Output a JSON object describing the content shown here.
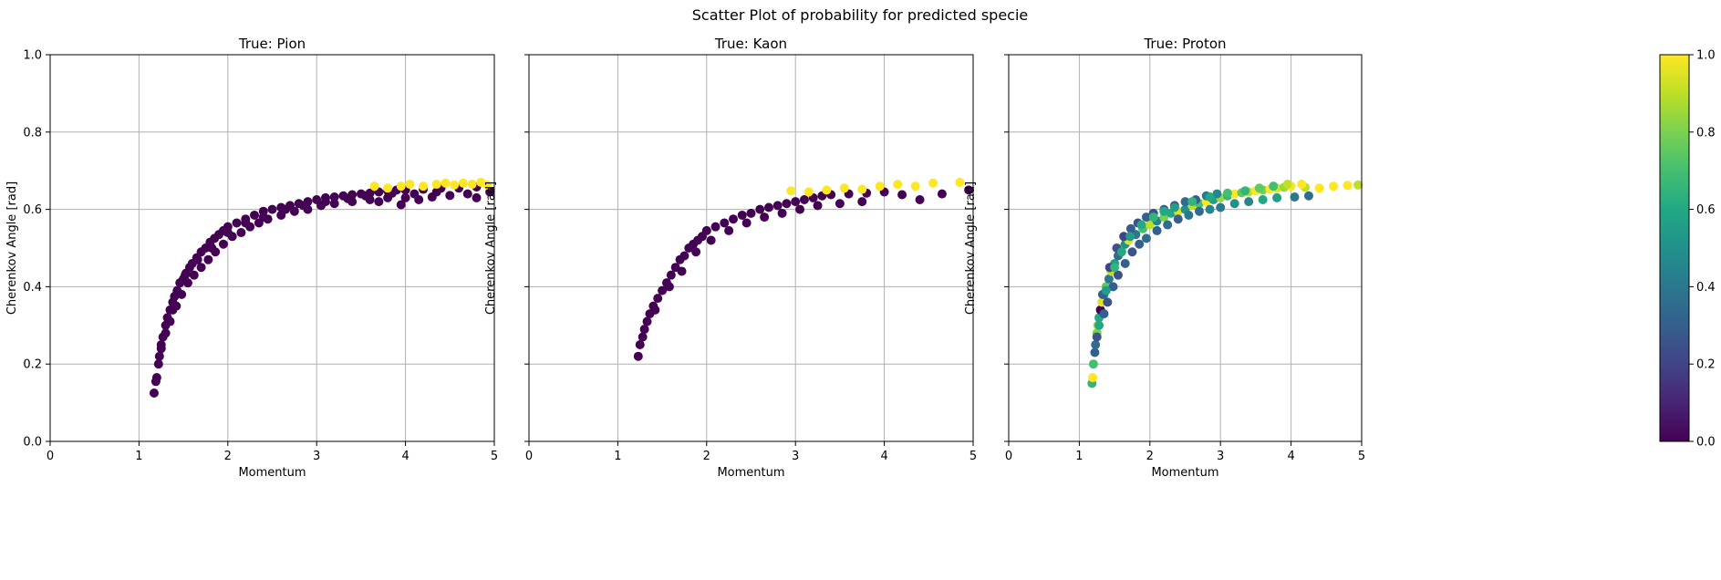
{
  "figure": {
    "suptitle": "Scatter Plot of probability for predicted specie"
  },
  "colorbar": {
    "ticks": [
      "0.0",
      "0.2",
      "0.4",
      "0.6",
      "0.8",
      "1.0"
    ],
    "colormap": "viridis",
    "range": [
      0,
      1
    ]
  },
  "chart_data": [
    {
      "type": "scatter",
      "title": "True: Pion",
      "xlabel": "Momentum",
      "ylabel": "Cherenkov Angle [rad]",
      "xlim": [
        0,
        5
      ],
      "ylim": [
        0,
        1.0
      ],
      "xticks": [
        "0",
        "1",
        "2",
        "3",
        "4",
        "5"
      ],
      "yticks": [
        "0.0",
        "0.2",
        "0.4",
        "0.6",
        "0.8",
        "1.0"
      ],
      "grid": true,
      "color_value_note": "predicted probability (0 = dark purple, 1 = yellow)",
      "points": [
        [
          1.17,
          0.125,
          0
        ],
        [
          1.19,
          0.155,
          0
        ],
        [
          1.2,
          0.165,
          0
        ],
        [
          1.22,
          0.2,
          0
        ],
        [
          1.23,
          0.22,
          0
        ],
        [
          1.25,
          0.25,
          0
        ],
        [
          1.27,
          0.27,
          0
        ],
        [
          1.3,
          0.3,
          0
        ],
        [
          1.32,
          0.32,
          0
        ],
        [
          1.35,
          0.34,
          0
        ],
        [
          1.38,
          0.36,
          0
        ],
        [
          1.4,
          0.375,
          0
        ],
        [
          1.43,
          0.39,
          0
        ],
        [
          1.46,
          0.41,
          0
        ],
        [
          1.5,
          0.42,
          0
        ],
        [
          1.53,
          0.435,
          0
        ],
        [
          1.57,
          0.45,
          0
        ],
        [
          1.6,
          0.46,
          0
        ],
        [
          1.65,
          0.475,
          0
        ],
        [
          1.7,
          0.49,
          0
        ],
        [
          1.75,
          0.5,
          0
        ],
        [
          1.8,
          0.515,
          0
        ],
        [
          1.85,
          0.525,
          0
        ],
        [
          1.9,
          0.535,
          0
        ],
        [
          1.95,
          0.545,
          0
        ],
        [
          2.0,
          0.555,
          0
        ],
        [
          2.1,
          0.565,
          0
        ],
        [
          2.2,
          0.575,
          0
        ],
        [
          2.3,
          0.585,
          0
        ],
        [
          2.4,
          0.595,
          0
        ],
        [
          2.5,
          0.6,
          0
        ],
        [
          2.6,
          0.605,
          0
        ],
        [
          2.7,
          0.61,
          0
        ],
        [
          2.8,
          0.615,
          0
        ],
        [
          2.9,
          0.62,
          0
        ],
        [
          3.0,
          0.625,
          0
        ],
        [
          3.1,
          0.63,
          0
        ],
        [
          3.2,
          0.632,
          0
        ],
        [
          3.3,
          0.635,
          0
        ],
        [
          3.4,
          0.638,
          0
        ],
        [
          3.5,
          0.64,
          0
        ],
        [
          3.6,
          0.642,
          0
        ],
        [
          3.7,
          0.645,
          0
        ],
        [
          3.8,
          0.648,
          0
        ],
        [
          3.9,
          0.65,
          0
        ],
        [
          4.0,
          0.65,
          0
        ],
        [
          4.2,
          0.652,
          0
        ],
        [
          4.4,
          0.655,
          0
        ],
        [
          4.6,
          0.655,
          0
        ],
        [
          4.8,
          0.658,
          0
        ],
        [
          4.95,
          0.645,
          0
        ],
        [
          1.3,
          0.28,
          0
        ],
        [
          1.35,
          0.31,
          0
        ],
        [
          1.42,
          0.35,
          0
        ],
        [
          1.48,
          0.38,
          0
        ],
        [
          1.55,
          0.41,
          0
        ],
        [
          1.62,
          0.43,
          0
        ],
        [
          1.7,
          0.45,
          0
        ],
        [
          1.78,
          0.47,
          0
        ],
        [
          1.86,
          0.49,
          0
        ],
        [
          1.95,
          0.51,
          0
        ],
        [
          2.05,
          0.53,
          0
        ],
        [
          2.15,
          0.54,
          0
        ],
        [
          2.25,
          0.555,
          0
        ],
        [
          2.35,
          0.565,
          0
        ],
        [
          2.45,
          0.575,
          0
        ],
        [
          2.6,
          0.585,
          0
        ],
        [
          2.75,
          0.595,
          0
        ],
        [
          2.9,
          0.6,
          0
        ],
        [
          3.05,
          0.61,
          0
        ],
        [
          3.2,
          0.615,
          0
        ],
        [
          3.4,
          0.62,
          0
        ],
        [
          3.6,
          0.625,
          0
        ],
        [
          3.8,
          0.63,
          0
        ],
        [
          4.0,
          0.63,
          0
        ],
        [
          4.3,
          0.632,
          0
        ],
        [
          4.5,
          0.636,
          0
        ],
        [
          4.8,
          0.63,
          0
        ],
        [
          1.25,
          0.24,
          0
        ],
        [
          1.38,
          0.34,
          0
        ],
        [
          1.52,
          0.43,
          0
        ],
        [
          1.66,
          0.47,
          0
        ],
        [
          1.82,
          0.5,
          0
        ],
        [
          2.0,
          0.54,
          0
        ],
        [
          2.2,
          0.565,
          0
        ],
        [
          2.4,
          0.58,
          0
        ],
        [
          2.65,
          0.6,
          0
        ],
        [
          2.85,
          0.61,
          0
        ],
        [
          3.1,
          0.62,
          0
        ],
        [
          3.35,
          0.628,
          0
        ],
        [
          3.55,
          0.635,
          0
        ],
        [
          3.85,
          0.642,
          0
        ],
        [
          4.1,
          0.64,
          0
        ],
        [
          4.35,
          0.645,
          0
        ],
        [
          4.7,
          0.64,
          0
        ],
        [
          3.95,
          0.612,
          0
        ],
        [
          4.15,
          0.625,
          0
        ],
        [
          3.7,
          0.62,
          0
        ],
        [
          3.65,
          0.66,
          1
        ],
        [
          3.8,
          0.655,
          1
        ],
        [
          3.95,
          0.66,
          1
        ],
        [
          4.05,
          0.665,
          1
        ],
        [
          4.2,
          0.66,
          1
        ],
        [
          4.35,
          0.665,
          1
        ],
        [
          4.45,
          0.668,
          1
        ],
        [
          4.55,
          0.663,
          1
        ],
        [
          4.65,
          0.668,
          1
        ],
        [
          4.75,
          0.665,
          1
        ],
        [
          4.85,
          0.67,
          1
        ],
        [
          4.92,
          0.663,
          1
        ]
      ]
    },
    {
      "type": "scatter",
      "title": "True: Kaon",
      "xlabel": "Momentum",
      "ylabel": "Cherenkov Angle [rad]",
      "xlim": [
        0,
        5
      ],
      "ylim": [
        0,
        1.0
      ],
      "xticks": [
        "0",
        "1",
        "2",
        "3",
        "4",
        "5"
      ],
      "yticks": [
        "",
        "",
        "",
        "",
        "",
        ""
      ],
      "grid": true,
      "points": [
        [
          1.23,
          0.22,
          0
        ],
        [
          1.25,
          0.25,
          0
        ],
        [
          1.28,
          0.27,
          0
        ],
        [
          1.3,
          0.29,
          0
        ],
        [
          1.33,
          0.31,
          0
        ],
        [
          1.36,
          0.33,
          0
        ],
        [
          1.4,
          0.35,
          0
        ],
        [
          1.45,
          0.37,
          0
        ],
        [
          1.5,
          0.39,
          0
        ],
        [
          1.55,
          0.41,
          0
        ],
        [
          1.6,
          0.43,
          0
        ],
        [
          1.65,
          0.45,
          0
        ],
        [
          1.7,
          0.47,
          0
        ],
        [
          1.75,
          0.48,
          0
        ],
        [
          1.8,
          0.5,
          0
        ],
        [
          1.85,
          0.51,
          0
        ],
        [
          1.9,
          0.52,
          0
        ],
        [
          1.95,
          0.53,
          0
        ],
        [
          2.0,
          0.545,
          0
        ],
        [
          2.1,
          0.555,
          0
        ],
        [
          2.2,
          0.565,
          0
        ],
        [
          2.3,
          0.575,
          0
        ],
        [
          2.4,
          0.585,
          0
        ],
        [
          2.5,
          0.59,
          0
        ],
        [
          2.6,
          0.6,
          0
        ],
        [
          2.7,
          0.605,
          0
        ],
        [
          2.8,
          0.61,
          0
        ],
        [
          2.9,
          0.615,
          0
        ],
        [
          3.0,
          0.62,
          0
        ],
        [
          3.1,
          0.625,
          0
        ],
        [
          3.2,
          0.63,
          0
        ],
        [
          3.3,
          0.635,
          0
        ],
        [
          3.4,
          0.638,
          0
        ],
        [
          3.6,
          0.64,
          0
        ],
        [
          3.8,
          0.642,
          0
        ],
        [
          4.0,
          0.645,
          0
        ],
        [
          4.2,
          0.638,
          0
        ],
        [
          4.4,
          0.625,
          0
        ],
        [
          4.65,
          0.64,
          0
        ],
        [
          4.95,
          0.65,
          0
        ],
        [
          1.42,
          0.34,
          0
        ],
        [
          1.58,
          0.4,
          0
        ],
        [
          1.72,
          0.44,
          0
        ],
        [
          1.88,
          0.49,
          0
        ],
        [
          2.05,
          0.52,
          0
        ],
        [
          2.25,
          0.545,
          0
        ],
        [
          2.45,
          0.565,
          0
        ],
        [
          2.65,
          0.58,
          0
        ],
        [
          2.85,
          0.59,
          0
        ],
        [
          3.05,
          0.6,
          0
        ],
        [
          3.25,
          0.61,
          0
        ],
        [
          3.5,
          0.615,
          0
        ],
        [
          3.75,
          0.62,
          0
        ],
        [
          2.95,
          0.648,
          1
        ],
        [
          3.15,
          0.645,
          1
        ],
        [
          3.35,
          0.65,
          1
        ],
        [
          3.55,
          0.655,
          1
        ],
        [
          3.75,
          0.652,
          1
        ],
        [
          3.95,
          0.66,
          1
        ],
        [
          4.15,
          0.665,
          1
        ],
        [
          4.35,
          0.66,
          1
        ],
        [
          4.55,
          0.668,
          1
        ],
        [
          4.85,
          0.67,
          1
        ]
      ]
    },
    {
      "type": "scatter",
      "title": "True: Proton",
      "xlabel": "Momentum",
      "ylabel": "Cherenkov Angle [rad]",
      "xlim": [
        0,
        5
      ],
      "ylim": [
        0,
        1.0
      ],
      "xticks": [
        "0",
        "1",
        "2",
        "3",
        "4",
        "5"
      ],
      "yticks": [
        "",
        "",
        "",
        "",
        "",
        ""
      ],
      "grid": true,
      "points": [
        [
          1.18,
          0.15,
          0.65
        ],
        [
          1.19,
          0.165,
          1
        ],
        [
          1.2,
          0.2,
          0.7
        ],
        [
          1.22,
          0.23,
          0.3
        ],
        [
          1.23,
          0.25,
          0.35
        ],
        [
          1.25,
          0.28,
          0.8
        ],
        [
          1.26,
          0.3,
          0.9
        ],
        [
          1.28,
          0.32,
          0.6
        ],
        [
          1.3,
          0.34,
          0.0
        ],
        [
          1.32,
          0.36,
          0.95
        ],
        [
          1.35,
          0.38,
          0.45
        ],
        [
          1.38,
          0.4,
          0.75
        ],
        [
          1.42,
          0.42,
          0.4
        ],
        [
          1.45,
          0.44,
          0.9
        ],
        [
          1.5,
          0.46,
          0.55
        ],
        [
          1.55,
          0.48,
          0.35
        ],
        [
          1.6,
          0.5,
          0.85
        ],
        [
          1.65,
          0.51,
          0.5
        ],
        [
          1.7,
          0.52,
          0.95
        ],
        [
          1.8,
          0.535,
          0.4
        ],
        [
          1.9,
          0.55,
          0.7
        ],
        [
          2.0,
          0.56,
          0.9
        ],
        [
          2.1,
          0.57,
          0.45
        ],
        [
          2.2,
          0.58,
          0.8
        ],
        [
          2.3,
          0.59,
          0.6
        ],
        [
          2.4,
          0.595,
          0.95
        ],
        [
          2.5,
          0.6,
          0.5
        ],
        [
          2.6,
          0.61,
          0.9
        ],
        [
          2.7,
          0.615,
          0.7
        ],
        [
          2.8,
          0.62,
          1
        ],
        [
          2.9,
          0.625,
          0.55
        ],
        [
          3.0,
          0.63,
          0.85
        ],
        [
          3.1,
          0.635,
          0.65
        ],
        [
          3.2,
          0.64,
          1
        ],
        [
          3.3,
          0.643,
          0.75
        ],
        [
          3.4,
          0.645,
          0.9
        ],
        [
          3.5,
          0.648,
          1
        ],
        [
          3.6,
          0.65,
          0.8
        ],
        [
          3.7,
          0.652,
          1
        ],
        [
          3.8,
          0.655,
          0.95
        ],
        [
          3.9,
          0.657,
          0.85
        ],
        [
          4.0,
          0.66,
          1
        ],
        [
          4.2,
          0.657,
          0.9
        ],
        [
          4.4,
          0.655,
          1
        ],
        [
          4.6,
          0.66,
          1
        ],
        [
          4.8,
          0.662,
          1
        ],
        [
          4.95,
          0.663,
          0.9
        ],
        [
          1.35,
          0.33,
          0.3
        ],
        [
          1.4,
          0.36,
          0.25
        ],
        [
          1.48,
          0.4,
          0.3
        ],
        [
          1.55,
          0.43,
          0.25
        ],
        [
          1.65,
          0.46,
          0.3
        ],
        [
          1.75,
          0.49,
          0.25
        ],
        [
          1.85,
          0.51,
          0.3
        ],
        [
          1.95,
          0.525,
          0.35
        ],
        [
          2.1,
          0.545,
          0.3
        ],
        [
          2.25,
          0.56,
          0.35
        ],
        [
          2.4,
          0.575,
          0.3
        ],
        [
          2.55,
          0.585,
          0.4
        ],
        [
          2.7,
          0.595,
          0.35
        ],
        [
          2.85,
          0.6,
          0.45
        ],
        [
          3.0,
          0.605,
          0.4
        ],
        [
          3.2,
          0.615,
          0.5
        ],
        [
          3.4,
          0.62,
          0.45
        ],
        [
          3.6,
          0.625,
          0.6
        ],
        [
          3.8,
          0.63,
          0.55
        ],
        [
          4.05,
          0.632,
          0.4
        ],
        [
          4.25,
          0.635,
          0.35
        ],
        [
          1.25,
          0.27,
          0.25
        ],
        [
          1.33,
          0.38,
          0.3
        ],
        [
          1.43,
          0.45,
          0.2
        ],
        [
          1.53,
          0.5,
          0.25
        ],
        [
          1.63,
          0.53,
          0.2
        ],
        [
          1.73,
          0.55,
          0.3
        ],
        [
          1.83,
          0.565,
          0.25
        ],
        [
          1.95,
          0.58,
          0.3
        ],
        [
          2.05,
          0.59,
          0.25
        ],
        [
          2.2,
          0.6,
          0.3
        ],
        [
          2.35,
          0.61,
          0.25
        ],
        [
          2.5,
          0.62,
          0.35
        ],
        [
          2.65,
          0.625,
          0.3
        ],
        [
          2.8,
          0.635,
          0.4
        ],
        [
          2.95,
          0.64,
          0.45
        ],
        [
          1.28,
          0.3,
          0.6
        ],
        [
          1.38,
          0.39,
          0.55
        ],
        [
          1.5,
          0.45,
          0.65
        ],
        [
          1.6,
          0.49,
          0.6
        ],
        [
          1.72,
          0.53,
          0.55
        ],
        [
          1.88,
          0.56,
          0.6
        ],
        [
          2.05,
          0.58,
          0.65
        ],
        [
          2.2,
          0.595,
          0.6
        ],
        [
          2.35,
          0.605,
          0.55
        ],
        [
          2.6,
          0.62,
          0.65
        ],
        [
          2.85,
          0.632,
          0.6
        ],
        [
          3.1,
          0.642,
          0.7
        ],
        [
          3.35,
          0.648,
          0.65
        ],
        [
          3.55,
          0.655,
          0.75
        ],
        [
          3.75,
          0.66,
          0.7
        ],
        [
          3.95,
          0.665,
          0.9
        ],
        [
          4.15,
          0.665,
          1
        ]
      ]
    }
  ]
}
